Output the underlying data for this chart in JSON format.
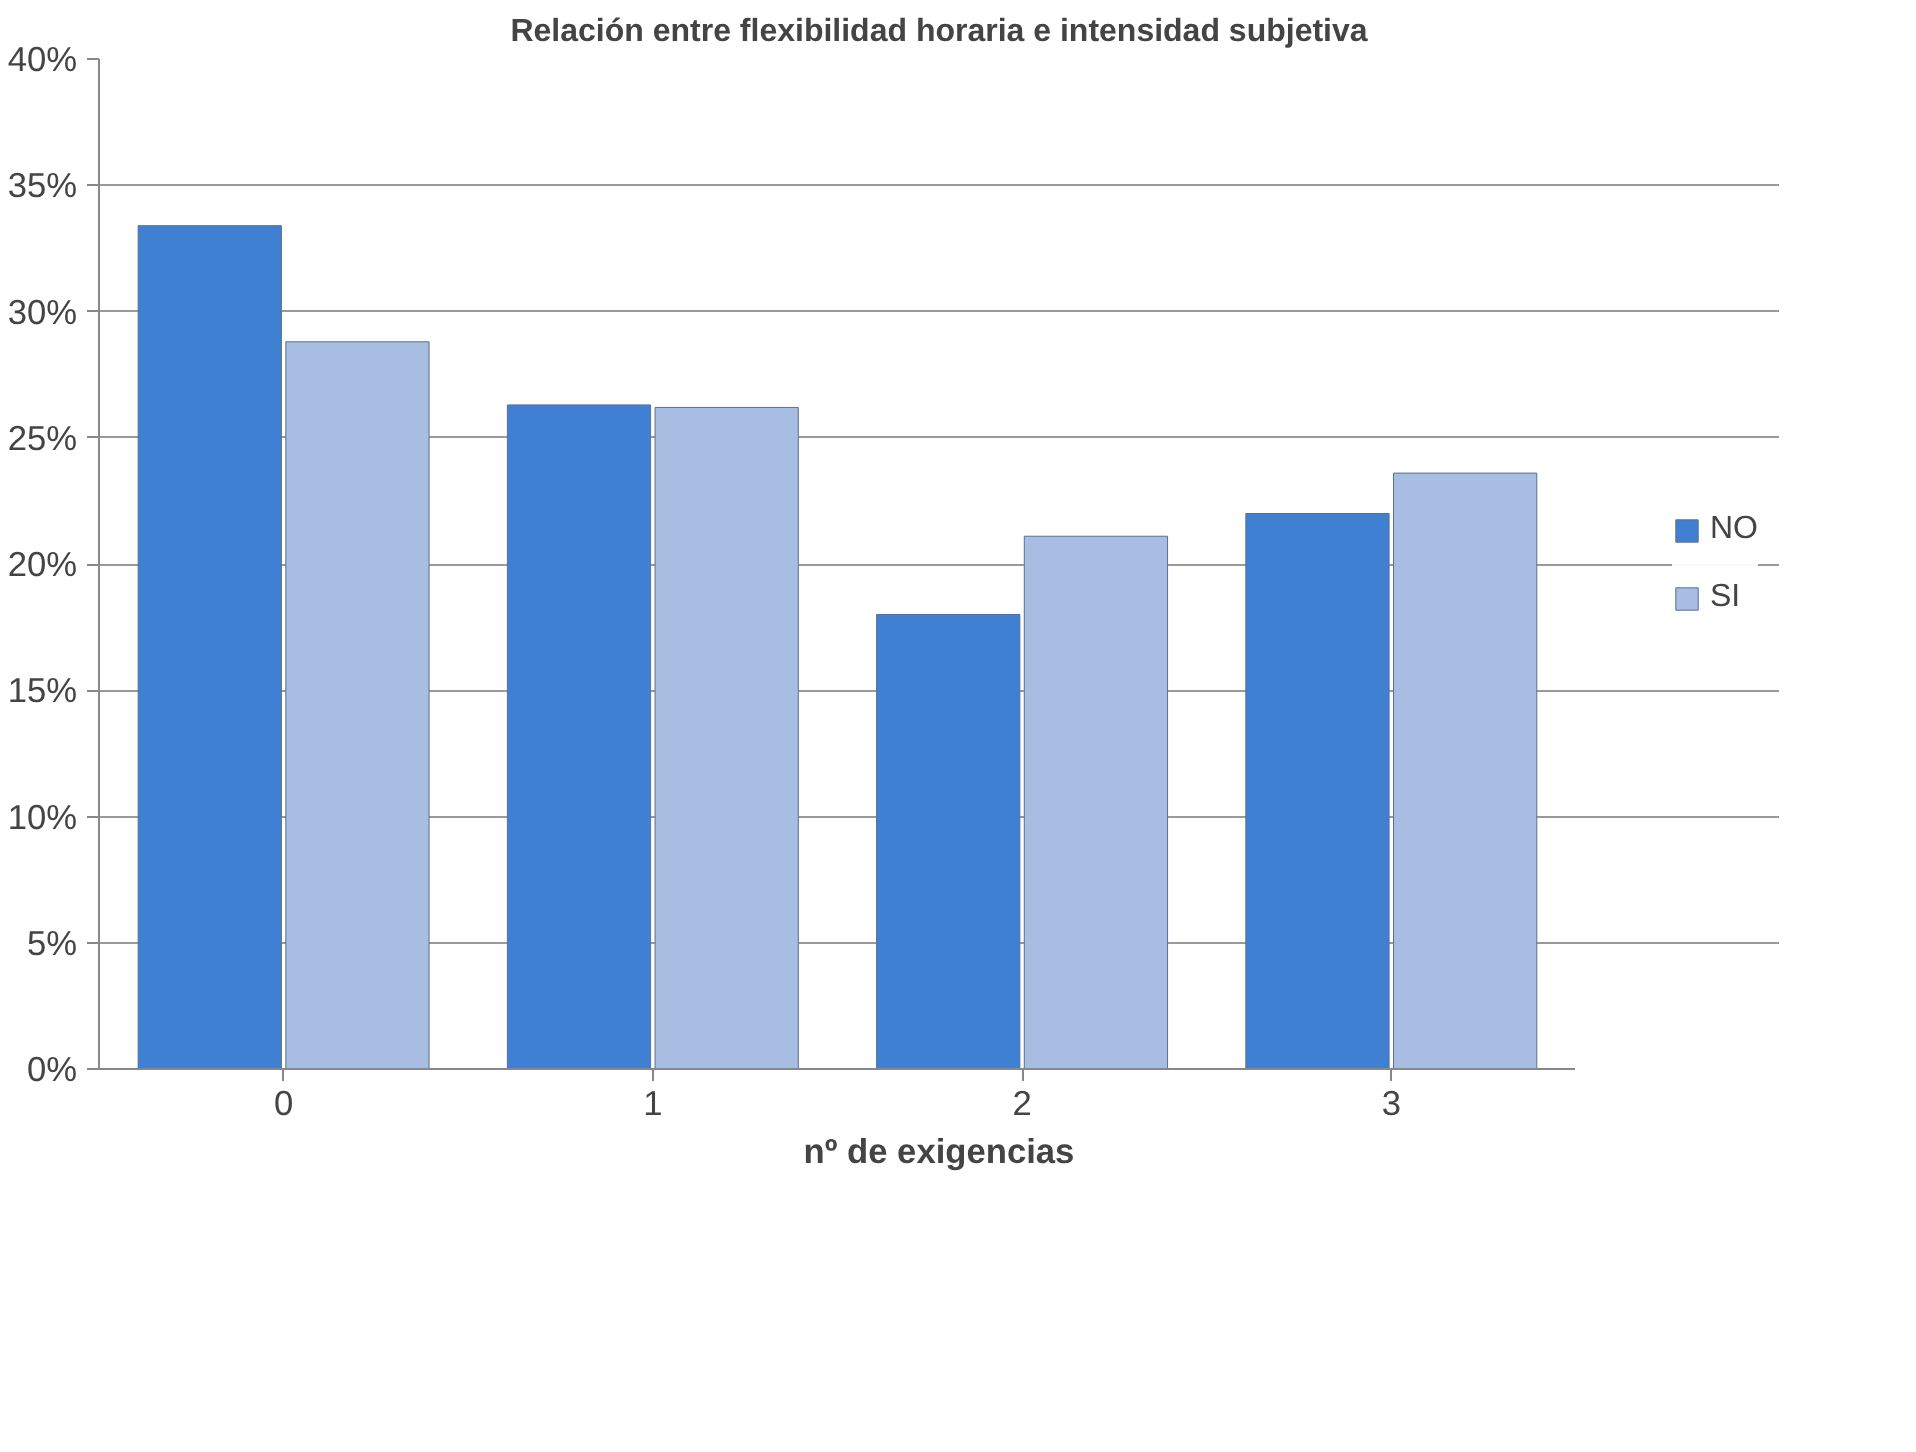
{
  "chart_data": {
    "type": "bar",
    "title": "Relación entre flexibilidad horaria e intensidad subjetiva",
    "xlabel": "nº de exigencias",
    "categories": [
      "0",
      "1",
      "2",
      "3"
    ],
    "series": [
      {
        "name": "NO",
        "color": "#3f80d2",
        "values": [
          33.4,
          26.3,
          18.0,
          22.0
        ]
      },
      {
        "name": "SI",
        "color": "#a7bde2",
        "values": [
          28.8,
          26.2,
          21.1,
          23.6
        ]
      }
    ],
    "ylim": [
      0,
      40
    ],
    "yticks": [
      {
        "value": 0,
        "label": "0%"
      },
      {
        "value": 5,
        "label": "5%"
      },
      {
        "value": 10,
        "label": "10%"
      },
      {
        "value": 15,
        "label": "15%"
      },
      {
        "value": 20,
        "label": "20%"
      },
      {
        "value": 25,
        "label": "25%"
      },
      {
        "value": 30,
        "label": "30%"
      },
      {
        "value": 35,
        "label": "35%"
      },
      {
        "value": 40,
        "label": "40%"
      }
    ],
    "grid": "y",
    "legend": "right"
  }
}
